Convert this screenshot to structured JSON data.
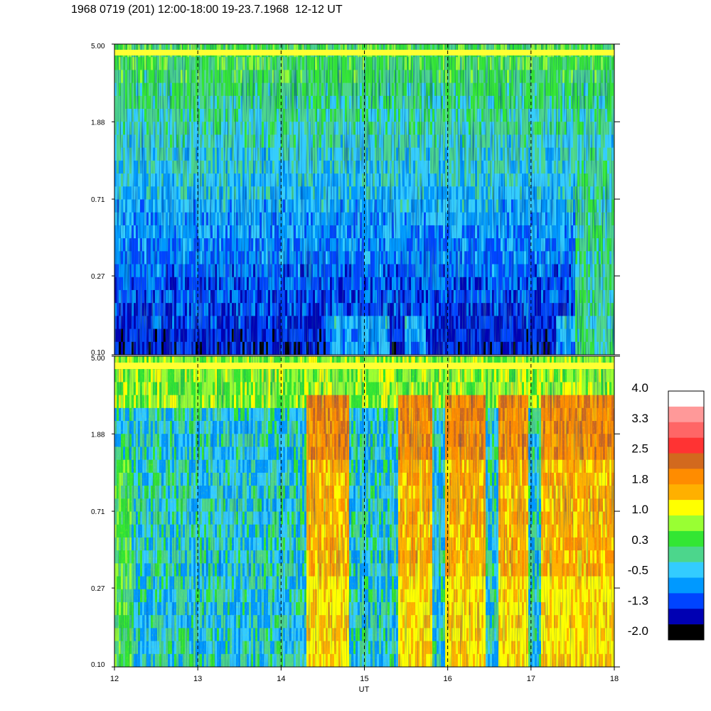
{
  "title": "1968 0719 (201) 12:00-18:00 19-23.7.1968  12-12 UT",
  "chart_data": {
    "type": "heatmap",
    "title": "1968 0719 (201) 12:00-18:00 19-23.7.1968  12-12 UT",
    "xlabel": "UT",
    "x_ticks": [
      "12",
      "13",
      "14",
      "15",
      "16",
      "17",
      "18"
    ],
    "xlim": [
      12,
      18
    ],
    "dashed_vertical_lines_at": [
      13,
      14,
      15,
      16,
      17
    ],
    "y_scale": "log",
    "panels": [
      {
        "name": "upper",
        "ylim": [
          0.1,
          5.0
        ],
        "y_ticks": [
          "5.00",
          "1.88",
          "0.71",
          "0.27",
          "0.10"
        ],
        "y_tick_values": [
          5.0,
          1.88,
          0.71,
          0.27,
          0.1
        ],
        "bright_band_near_top": true
      },
      {
        "name": "lower",
        "ylim": [
          0.1,
          5.0
        ],
        "y_ticks": [
          "5.00",
          "1.88",
          "0.71",
          "0.27",
          "0.10"
        ],
        "y_tick_values": [
          5.0,
          1.88,
          0.71,
          0.27,
          0.1
        ],
        "bright_band_near_top": true,
        "enhancement_intervals_UT": [
          [
            14.3,
            14.8
          ],
          [
            15.4,
            15.8
          ],
          [
            15.95,
            16.45
          ],
          [
            16.6,
            16.95
          ],
          [
            17.1,
            18.0
          ]
        ]
      }
    ],
    "colorbar": {
      "ticks": [
        "4.0",
        "3.3",
        "2.5",
        "1.8",
        "1.0",
        "0.3",
        "-0.5",
        "-1.3",
        "-2.0"
      ],
      "range": [
        -2.0,
        4.0
      ],
      "colors_top_to_bottom": [
        "#ffffff",
        "#ff9999",
        "#ff6666",
        "#ff3333",
        "#d2691e",
        "#ff8c00",
        "#ffb000",
        "#ffff00",
        "#99ff33",
        "#33e633",
        "#4cd68c",
        "#33ccff",
        "#0099ff",
        "#0044ff",
        "#0000b3",
        "#000000"
      ]
    }
  }
}
